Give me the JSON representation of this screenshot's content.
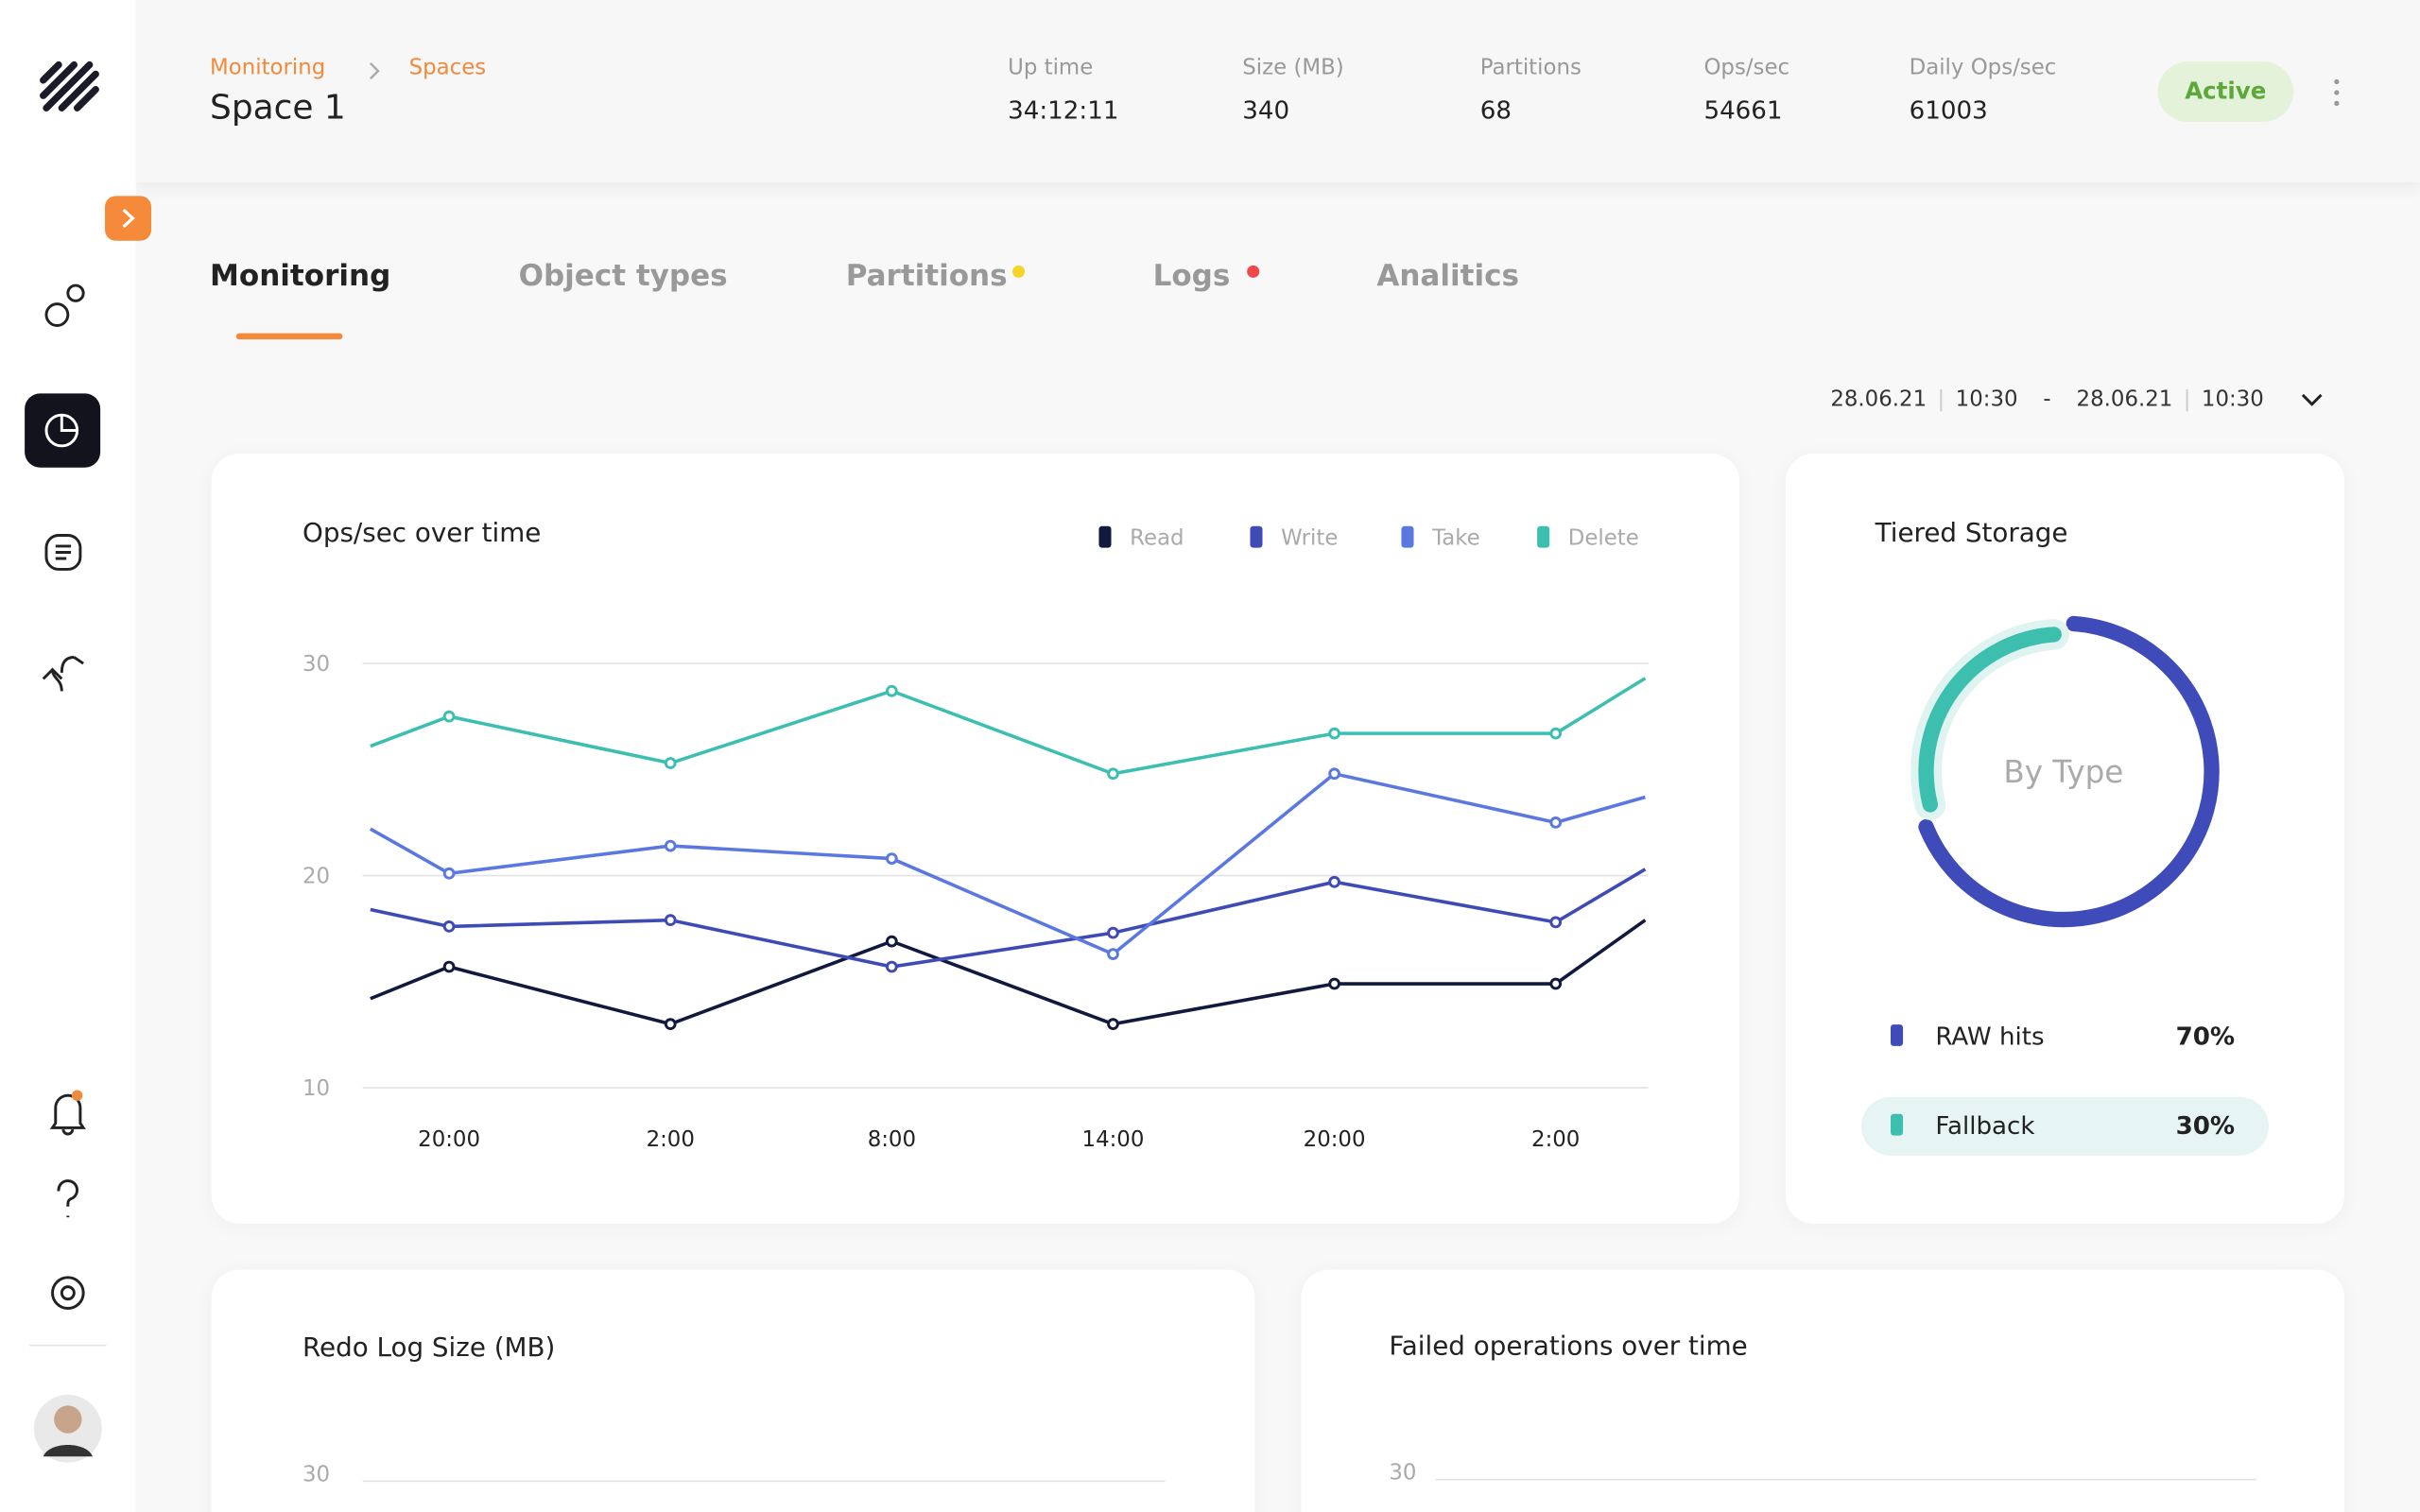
{
  "header": {
    "breadcrumb": [
      "Monitoring",
      "Spaces"
    ],
    "title": "Space 1",
    "stats": [
      {
        "label": "Up time",
        "value": "34:12:11"
      },
      {
        "label": "Size (MB)",
        "value": "340"
      },
      {
        "label": "Partitions",
        "value": "68"
      },
      {
        "label": "Ops/sec",
        "value": "54661"
      },
      {
        "label": "Daily Ops/sec",
        "value": "61003"
      }
    ],
    "status": "Active"
  },
  "tabs": [
    "Monitoring",
    "Object types",
    "Partitions",
    "Logs",
    "Analitics"
  ],
  "date_range": {
    "from_date": "28.06.21",
    "from_time": "10:30",
    "separator": "-",
    "to_date": "28.06.21",
    "to_time": "10:30"
  },
  "ops_chart": {
    "type": "line",
    "title": "Ops/sec over time",
    "categories": [
      null,
      "20:00",
      "2:00",
      "8:00",
      "14:00",
      "20:00",
      "2:00",
      null
    ],
    "series": [
      {
        "name": "Read",
        "color": "#111a3e",
        "values": [
          14.2,
          15.7,
          13.0,
          16.9,
          13.0,
          14.9,
          14.9,
          17.9
        ]
      },
      {
        "name": "Write",
        "color": "#3f4bb5",
        "values": [
          18.4,
          17.6,
          17.9,
          15.7,
          17.3,
          19.7,
          17.8,
          20.3
        ]
      },
      {
        "name": "Take",
        "color": "#5b78e0",
        "values": [
          22.2,
          20.1,
          21.4,
          20.8,
          16.3,
          24.8,
          22.5,
          23.7
        ]
      },
      {
        "name": "Delete",
        "color": "#3dbfb0",
        "values": [
          26.1,
          27.5,
          25.3,
          28.7,
          24.8,
          26.7,
          26.7,
          29.3
        ]
      }
    ],
    "ylim": [
      10,
      30
    ],
    "yticks": [
      10,
      20,
      30
    ],
    "grid": true
  },
  "storage_chart": {
    "type": "donut",
    "title": "Tiered Storage",
    "center_label": "By Type",
    "categories": [
      "RAW hits",
      "Fallback"
    ],
    "values": [
      70,
      30
    ],
    "value_labels": [
      "70%",
      "30%"
    ],
    "colors": [
      "#3f4bb8",
      "#3dbfb0"
    ]
  },
  "redo_chart": {
    "title": "Redo Log Size (MB)",
    "yticks": [
      30
    ]
  },
  "failed_chart": {
    "title": "Failed operations over time",
    "yticks": [
      30
    ]
  }
}
